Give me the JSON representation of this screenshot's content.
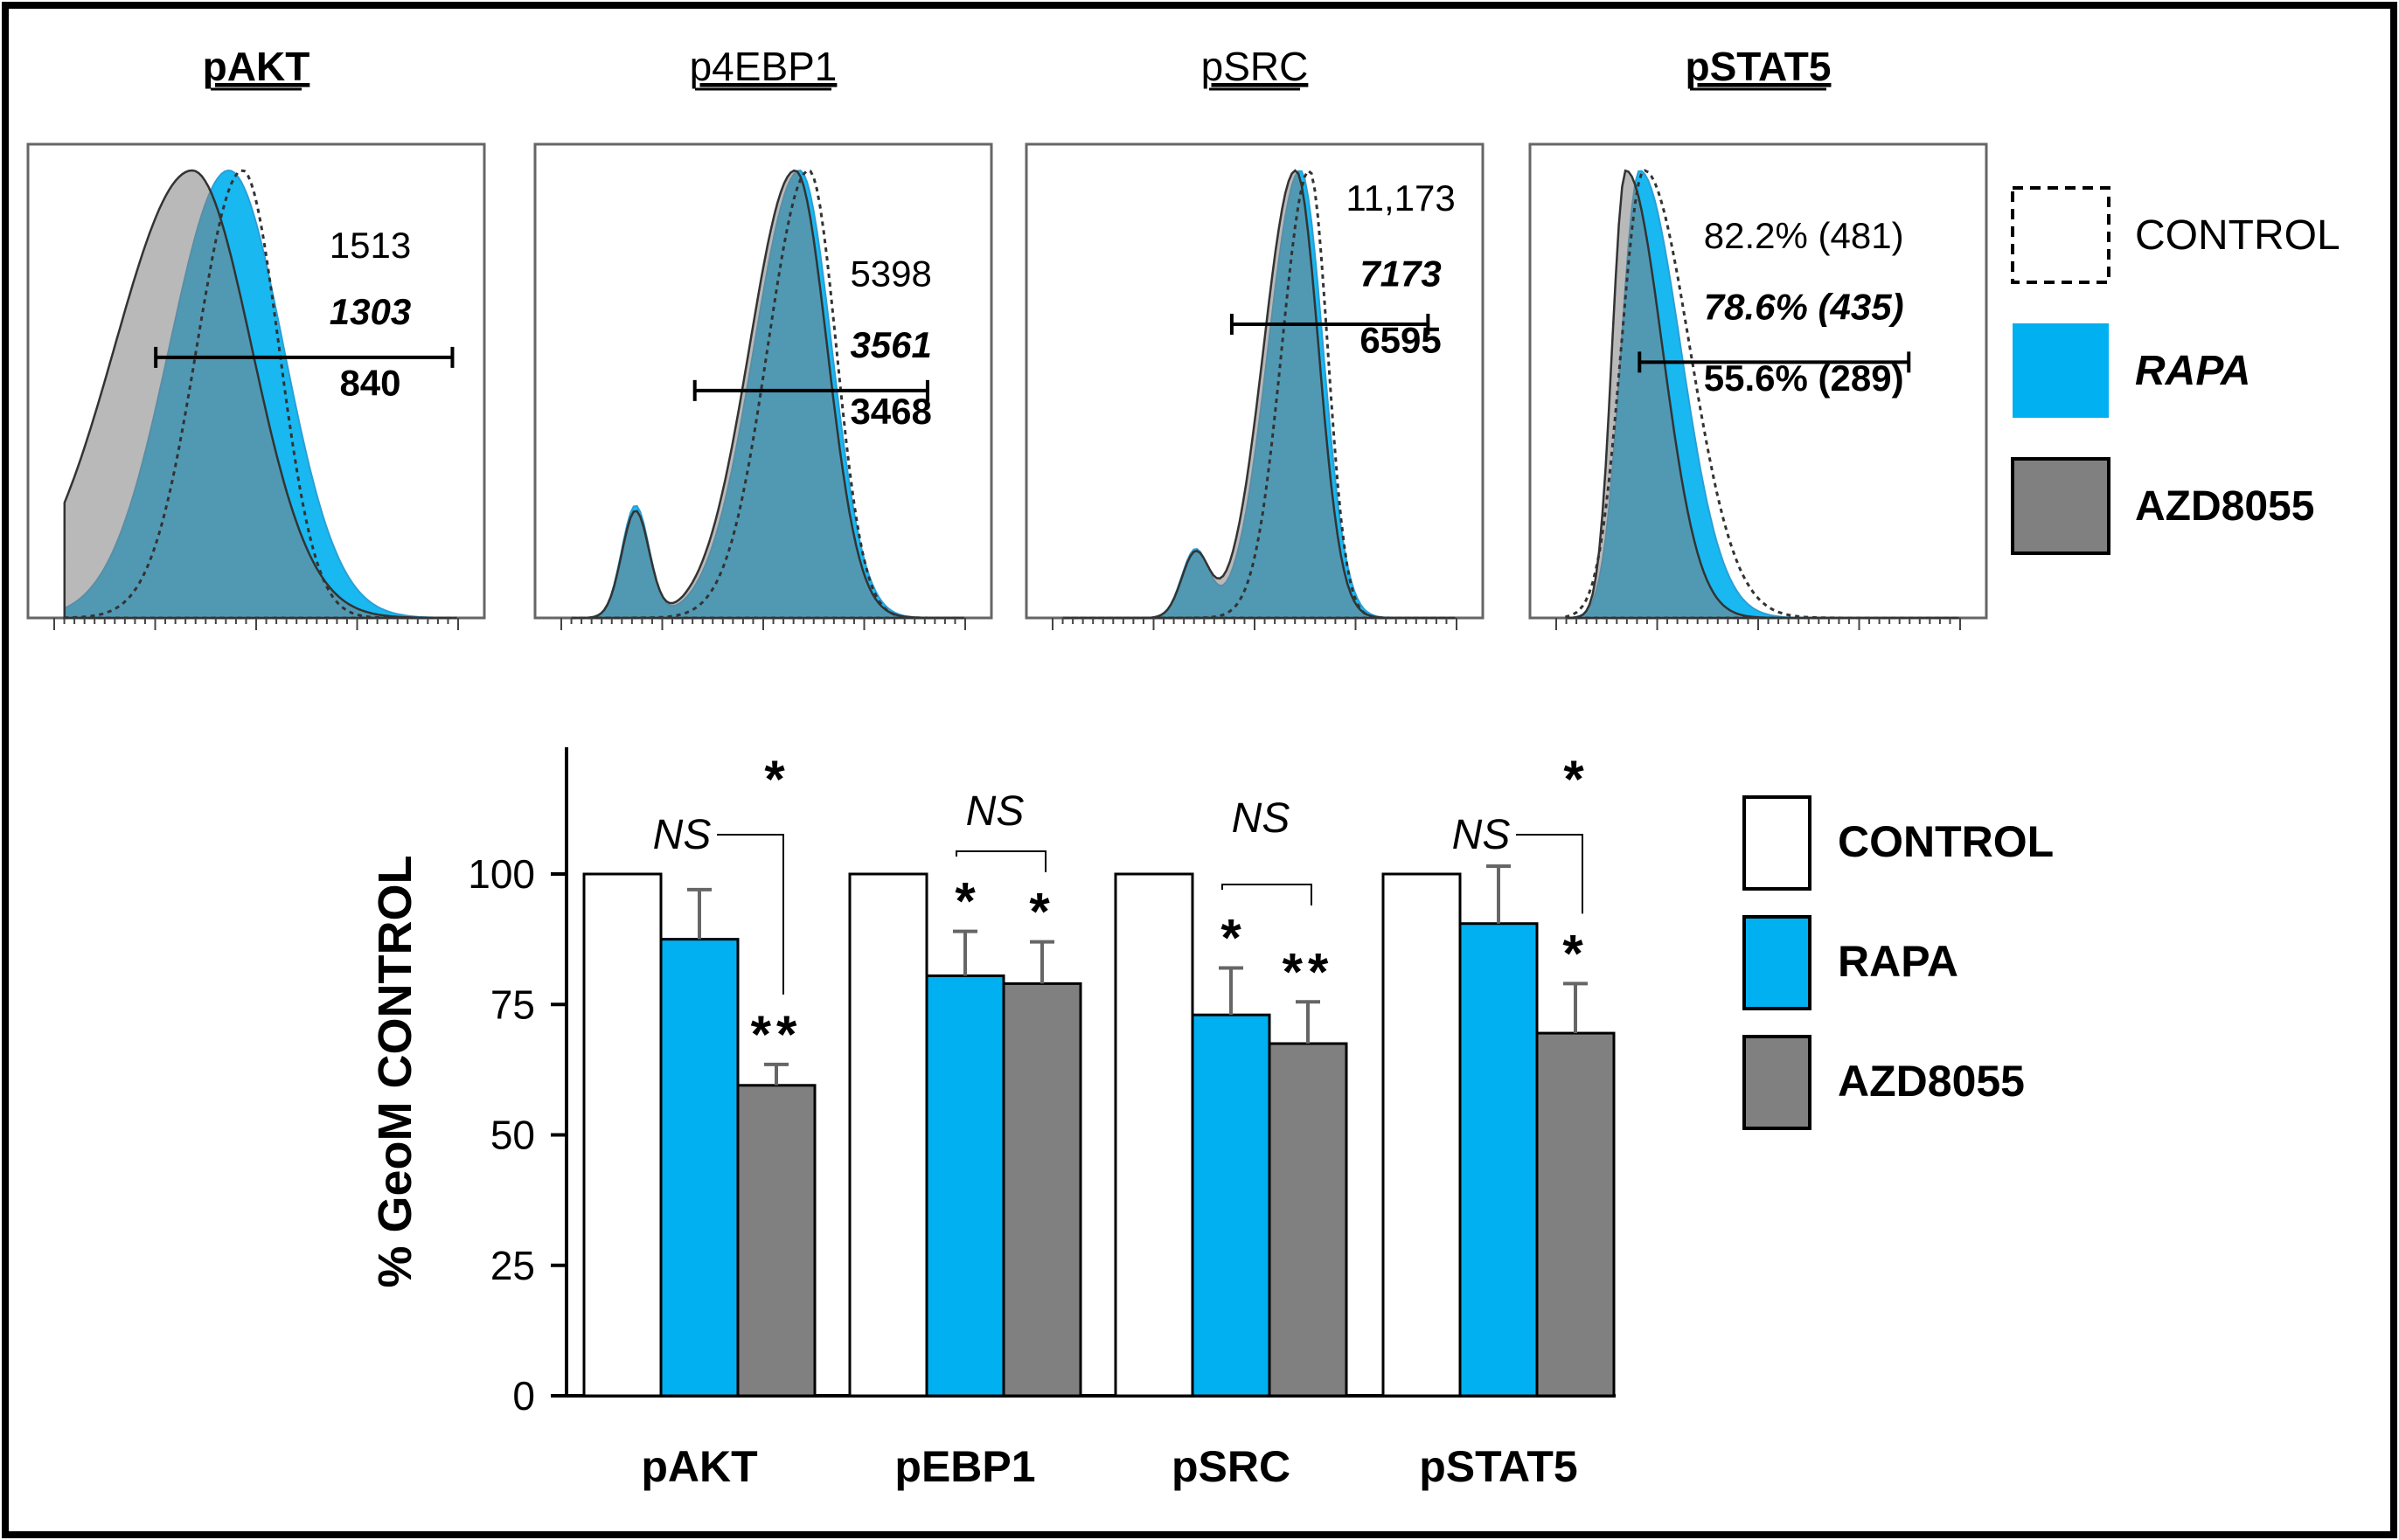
{
  "colors": {
    "control": "#ffffff",
    "rapa": "#00b0f0",
    "azd": "#808080",
    "overlap": "#4aa1b6",
    "frame": "#000000"
  },
  "histograms": {
    "panels": [
      {
        "title": "pAKT",
        "bold": true,
        "values": [
          {
            "text": "1513",
            "bold": false,
            "italic": false
          },
          {
            "text": "1303",
            "bold": true,
            "italic": true
          },
          {
            "text": "840",
            "bold": true,
            "italic": false
          }
        ]
      },
      {
        "title": "p4EBP1",
        "bold": false,
        "values": [
          {
            "text": "5398",
            "bold": false,
            "italic": false
          },
          {
            "text": "3561",
            "bold": true,
            "italic": true
          },
          {
            "text": "3468",
            "bold": true,
            "italic": false
          }
        ]
      },
      {
        "title": "pSRC",
        "bold": false,
        "values": [
          {
            "text": "11,173",
            "bold": false,
            "italic": false
          },
          {
            "text": "7173",
            "bold": true,
            "italic": true
          },
          {
            "text": "6595",
            "bold": true,
            "italic": false
          }
        ]
      },
      {
        "title": "pSTAT5",
        "bold": true,
        "values": [
          {
            "text": "82.2%  (481)",
            "bold": false,
            "italic": false
          },
          {
            "text": "78.6%  (435)",
            "bold": true,
            "italic": true
          },
          {
            "text": "55.6%  (289)",
            "bold": true,
            "italic": false
          }
        ]
      }
    ],
    "legend": [
      {
        "label": "CONTROL",
        "style": "dashed",
        "bold": false,
        "italic": false
      },
      {
        "label": "RAPA",
        "style": "rapa",
        "bold": true,
        "italic": true
      },
      {
        "label": "AZD8055",
        "style": "azd",
        "bold": true,
        "italic": false
      }
    ]
  },
  "chart_data": {
    "type": "bar",
    "ylabel": "% GeoM CONTROL",
    "ylim": [
      0,
      125
    ],
    "yticks": [
      0,
      25,
      50,
      75,
      100
    ],
    "categories": [
      "pAKT",
      "pEBP1",
      "pSRC",
      "pSTAT5"
    ],
    "series": [
      {
        "name": "CONTROL",
        "values": [
          100,
          100,
          100,
          100
        ],
        "errors": [
          0,
          0,
          0,
          0
        ]
      },
      {
        "name": "RAPA",
        "values": [
          87.5,
          80.5,
          73,
          90.5
        ],
        "errors": [
          9.5,
          8.5,
          9,
          11
        ]
      },
      {
        "name": "AZD8055",
        "values": [
          59.5,
          79,
          67.5,
          69.5
        ],
        "errors": [
          4,
          8,
          8,
          9.5
        ]
      }
    ],
    "significance": [
      {
        "category": "pAKT",
        "rapa": "",
        "azd": "**",
        "bracket_label": "NS",
        "bracket_marker": "*",
        "bracket": "control-azd"
      },
      {
        "category": "pEBP1",
        "rapa": "*",
        "azd": "*",
        "bracket_label": "NS",
        "bracket_marker": "",
        "bracket": "rapa-azd"
      },
      {
        "category": "pSRC",
        "rapa": "*",
        "azd": "**",
        "bracket_label": "NS",
        "bracket_marker": "",
        "bracket": "rapa-azd"
      },
      {
        "category": "pSTAT5",
        "rapa": "",
        "azd": "*",
        "bracket_label": "NS",
        "bracket_marker": "*",
        "bracket": "control-azd"
      }
    ],
    "legend": [
      "CONTROL",
      "RAPA",
      "AZD8055"
    ]
  }
}
